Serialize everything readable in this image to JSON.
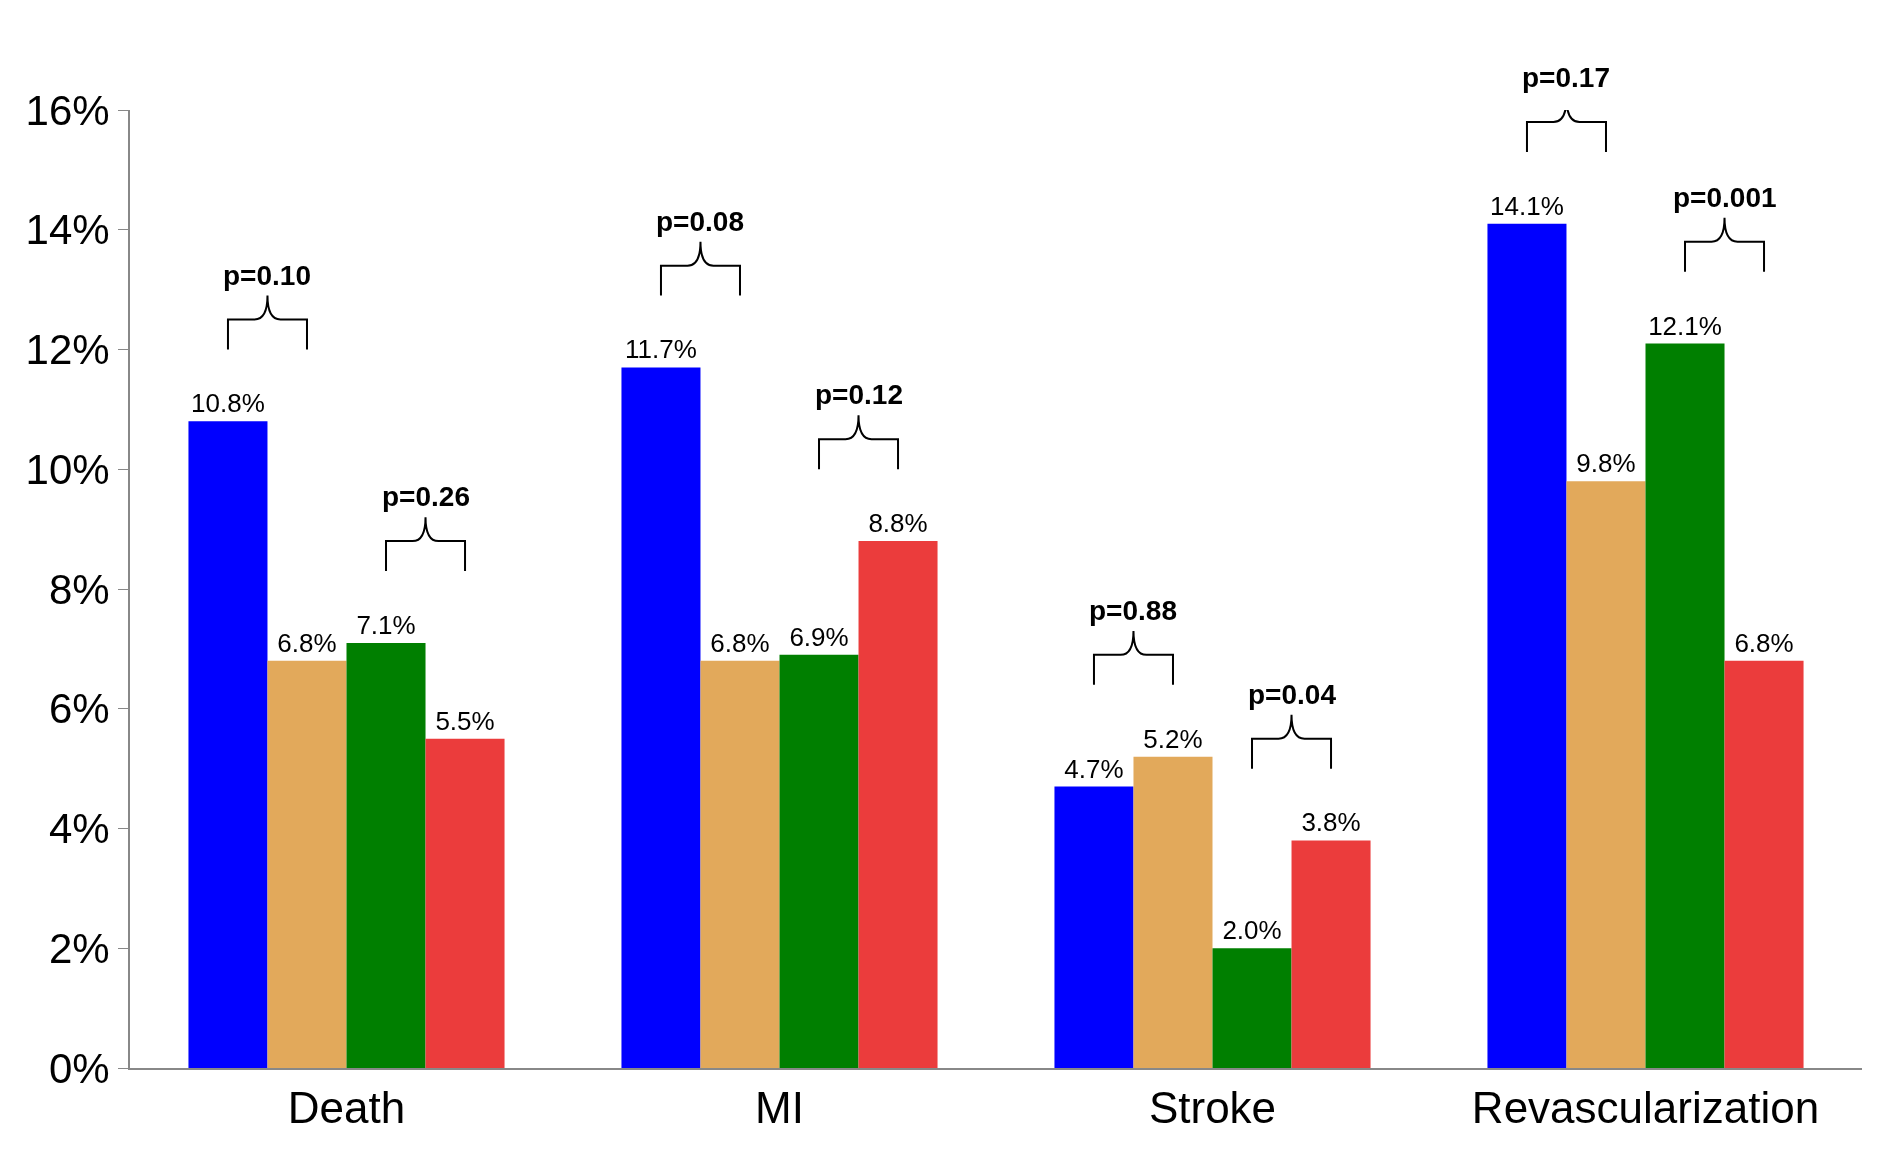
{
  "chart_data": {
    "type": "bar",
    "categories": [
      "Death",
      "MI",
      "Stroke",
      "Revascularization"
    ],
    "series": [
      {
        "color": "#0000ff",
        "values": [
          10.8,
          11.7,
          4.7,
          14.1
        ],
        "value_labels": [
          "10.8%",
          "11.7%",
          "4.7%",
          "14.1%"
        ]
      },
      {
        "color": "#e2a95b",
        "values": [
          6.8,
          6.8,
          5.2,
          9.8
        ],
        "value_labels": [
          "6.8%",
          "6.8%",
          "5.2%",
          "9.8%"
        ]
      },
      {
        "color": "#007f00",
        "values": [
          7.1,
          6.9,
          2.0,
          12.1
        ],
        "value_labels": [
          "7.1%",
          "6.9%",
          "2.0%",
          "12.1%"
        ]
      },
      {
        "color": "#eb3c3c",
        "values": [
          5.5,
          8.8,
          3.8,
          6.8
        ],
        "value_labels": [
          "5.5%",
          "8.8%",
          "3.8%",
          "6.8%"
        ]
      }
    ],
    "annotations": [
      "p=0.10",
      "p=0.26",
      "p=0.08",
      "p=0.12",
      "p=0.88",
      "p=0.04",
      "p=0.17",
      "p=0.001"
    ],
    "ylim": [
      0,
      16
    ],
    "yticks": [
      {
        "value": 0,
        "label": "0%"
      },
      {
        "value": 2,
        "label": "2%"
      },
      {
        "value": 4,
        "label": "4%"
      },
      {
        "value": 6,
        "label": "6%"
      },
      {
        "value": 8,
        "label": "8%"
      },
      {
        "value": 10,
        "label": "10%"
      },
      {
        "value": 12,
        "label": "12%"
      },
      {
        "value": 14,
        "label": "14%"
      },
      {
        "value": 16,
        "label": "16%"
      }
    ]
  }
}
